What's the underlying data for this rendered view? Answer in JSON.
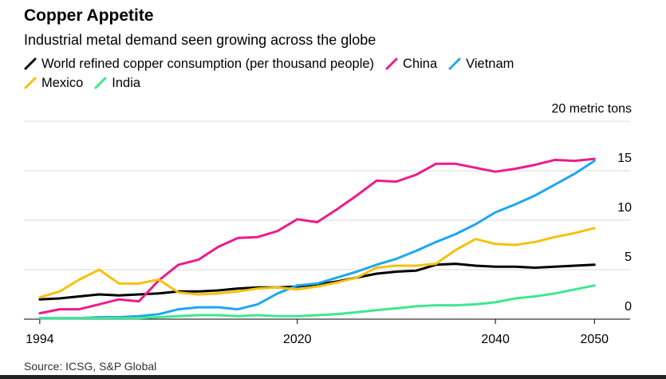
{
  "chart_data": {
    "type": "line",
    "title": "Copper Appetite",
    "subtitle": "Industrial metal demand seen growing across the globe",
    "source": "Source: ICSG, S&P Global",
    "x": [
      1994,
      1996,
      1998,
      2000,
      2002,
      2004,
      2006,
      2008,
      2010,
      2012,
      2014,
      2016,
      2018,
      2020,
      2022,
      2024,
      2026,
      2028,
      2030,
      2032,
      2034,
      2036,
      2038,
      2040,
      2042,
      2044,
      2046,
      2048,
      2050
    ],
    "series": [
      {
        "name": "World refined copper consumption (per thousand people)",
        "color": "#000000",
        "values": [
          2.0,
          2.1,
          2.3,
          2.5,
          2.4,
          2.5,
          2.6,
          2.8,
          2.8,
          2.9,
          3.1,
          3.2,
          3.2,
          3.3,
          3.5,
          3.8,
          4.2,
          4.6,
          4.8,
          4.9,
          5.5,
          5.6,
          5.4,
          5.3,
          5.3,
          5.2,
          5.3,
          5.4,
          5.5
        ]
      },
      {
        "name": "China",
        "color": "#ec1c8c",
        "values": [
          0.6,
          1.0,
          1.0,
          1.5,
          2.0,
          1.8,
          3.9,
          5.5,
          6.0,
          7.3,
          8.2,
          8.3,
          8.9,
          10.1,
          9.8,
          11.1,
          12.5,
          14.0,
          13.9,
          14.6,
          15.7,
          15.7,
          15.3,
          14.9,
          15.2,
          15.6,
          16.1,
          16.0,
          16.2
        ]
      },
      {
        "name": "Vietnam",
        "color": "#1ea7f0",
        "values": [
          0.1,
          0.1,
          0.1,
          0.2,
          0.2,
          0.3,
          0.5,
          1.0,
          1.2,
          1.2,
          1.0,
          1.5,
          2.6,
          3.4,
          3.6,
          4.2,
          4.8,
          5.5,
          6.1,
          6.9,
          7.8,
          8.6,
          9.6,
          10.8,
          11.6,
          12.5,
          13.6,
          14.7,
          16.0
        ]
      },
      {
        "name": "Mexico",
        "color": "#f5c10e",
        "values": [
          2.2,
          2.8,
          4.0,
          5.0,
          3.6,
          3.6,
          4.0,
          2.7,
          2.5,
          2.6,
          2.8,
          3.1,
          3.2,
          3.0,
          3.3,
          3.7,
          4.2,
          5.2,
          5.4,
          5.4,
          5.6,
          7.0,
          8.1,
          7.6,
          7.5,
          7.8,
          8.3,
          8.7,
          9.2
        ]
      },
      {
        "name": "India",
        "color": "#3ee88f",
        "values": [
          0.1,
          0.1,
          0.1,
          0.1,
          0.1,
          0.1,
          0.2,
          0.3,
          0.4,
          0.4,
          0.3,
          0.4,
          0.3,
          0.3,
          0.4,
          0.5,
          0.7,
          0.9,
          1.1,
          1.3,
          1.4,
          1.4,
          1.5,
          1.7,
          2.1,
          2.3,
          2.6,
          3.0,
          3.4
        ]
      }
    ],
    "xlim": [
      1992.4,
      2053.6
    ],
    "xticks": [
      1994,
      2020,
      2040,
      2050
    ],
    "ylim": [
      0,
      20
    ],
    "yticks": [
      0,
      5,
      10,
      15,
      {
        "value": 20,
        "label": "20 metric tons"
      }
    ],
    "grid": true
  }
}
